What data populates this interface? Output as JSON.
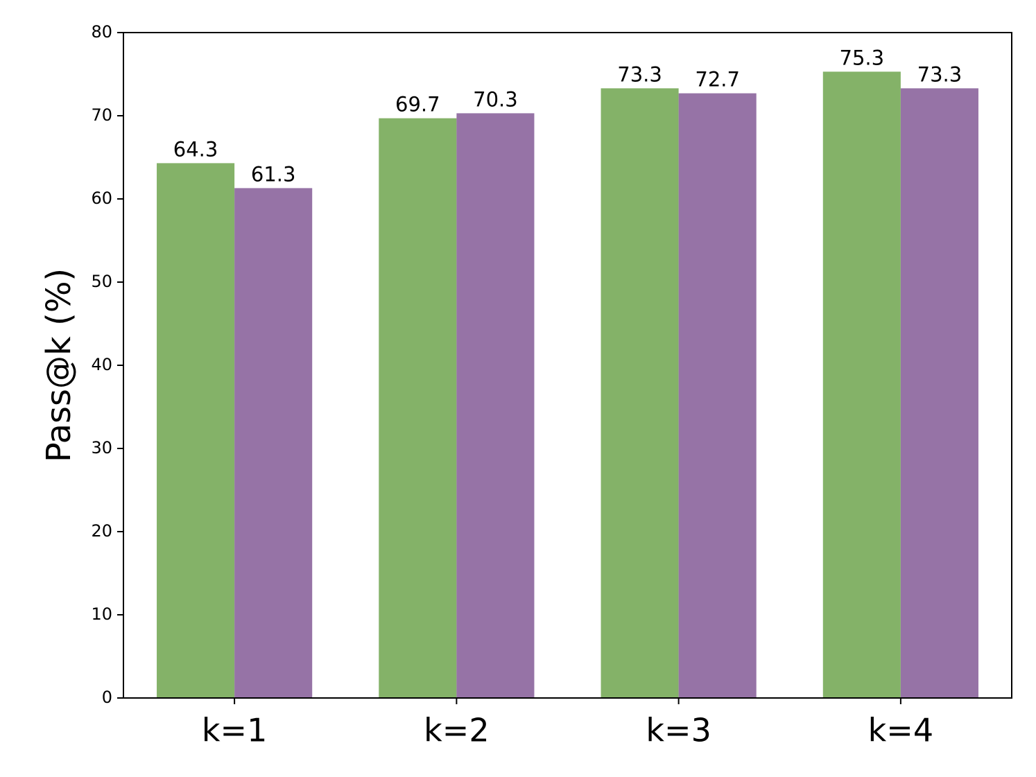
{
  "chart_data": {
    "type": "bar",
    "ylabel": "Pass@k (%)",
    "categories": [
      "k=1",
      "k=2",
      "k=3",
      "k=4"
    ],
    "series": [
      {
        "color": "#84b268",
        "values": [
          64.3,
          69.7,
          73.3,
          75.3
        ]
      },
      {
        "color": "#9673a6",
        "values": [
          61.3,
          70.3,
          72.7,
          73.3
        ]
      }
    ],
    "ylim": [
      0,
      80
    ],
    "yticks": [
      0,
      10,
      20,
      30,
      40,
      50,
      60,
      70,
      80
    ]
  }
}
